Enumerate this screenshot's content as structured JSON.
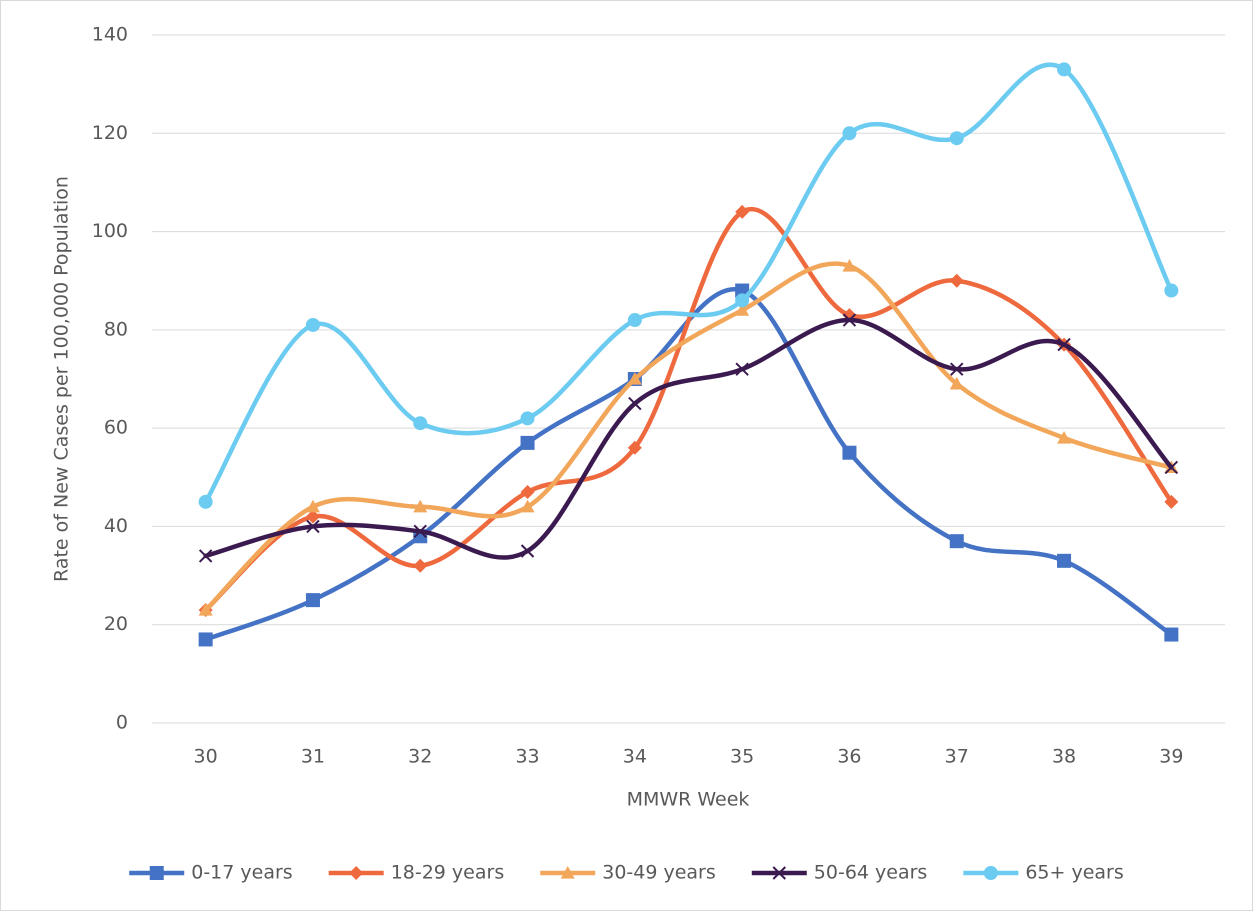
{
  "chart_data": {
    "type": "line",
    "x_label": "MMWR Week",
    "y_label": "Rate of New Cases per 100,000 Population",
    "categories": [
      "30",
      "31",
      "32",
      "33",
      "34",
      "35",
      "36",
      "37",
      "38",
      "39"
    ],
    "series": [
      {
        "name": "0-17 years",
        "color": "#4472c4",
        "marker": "square",
        "values": [
          17,
          25,
          38,
          57,
          70,
          88,
          55,
          37,
          33,
          18
        ]
      },
      {
        "name": "18-29 years",
        "color": "#ee6a3e",
        "marker": "diamond",
        "values": [
          23,
          42,
          32,
          47,
          56,
          104,
          83,
          90,
          77,
          45
        ]
      },
      {
        "name": "30-49 years",
        "color": "#f2a65a",
        "marker": "triangle",
        "values": [
          23,
          44,
          44,
          44,
          70,
          84,
          93,
          69,
          58,
          52
        ]
      },
      {
        "name": "50-64 years",
        "color": "#3b1a50",
        "marker": "x",
        "values": [
          34,
          40,
          39,
          35,
          65,
          72,
          82,
          72,
          77,
          52
        ]
      },
      {
        "name": "65+ years",
        "color": "#6ccbf0",
        "marker": "circle",
        "values": [
          45,
          81,
          61,
          62,
          82,
          86,
          120,
          119,
          133,
          88
        ]
      }
    ],
    "ylim": [
      0,
      140
    ],
    "yticks": [
      0,
      20,
      40,
      60,
      80,
      100,
      120,
      140
    ],
    "grid": true,
    "smooth": true,
    "legend": "bottom"
  }
}
